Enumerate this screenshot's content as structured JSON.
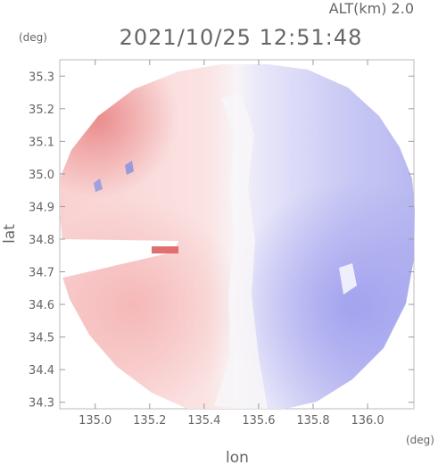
{
  "chart_data": {
    "type": "heatmap",
    "title": "2021/10/25 12:51:48",
    "altitude_label": "ALT(km) 2.0",
    "xlabel": "lon",
    "ylabel": "lat",
    "x_unit": "(deg)",
    "y_unit": "(deg)",
    "xlim": [
      134.87,
      136.17
    ],
    "ylim": [
      34.28,
      35.35
    ],
    "xticks": [
      "135.0",
      "135.2",
      "135.4",
      "135.6",
      "135.8",
      "136.0"
    ],
    "yticks": [
      "34.3",
      "34.4",
      "34.5",
      "34.6",
      "34.7",
      "34.8",
      "34.9",
      "35.0",
      "35.1",
      "35.2",
      "35.3"
    ],
    "grid": false,
    "radar_center": [
      135.52,
      34.7
    ],
    "field_description": "radial velocity-like diverging field: red on the west half, blue on the east half, near-white along the center",
    "colors": {
      "positive_strong": "#e88a8a",
      "positive_weak": "#fbe2e2",
      "neutral": "#f7f5f8",
      "negative_weak": "#e3e3f9",
      "negative_strong": "#a3a3ee"
    }
  }
}
